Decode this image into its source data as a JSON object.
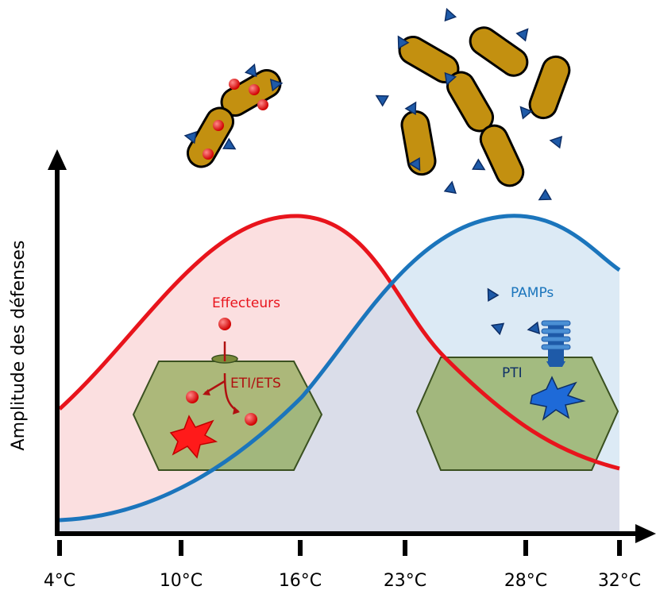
{
  "axis": {
    "y_label": "Amplitude des défenses",
    "x_labels": [
      "4°C",
      "10°C",
      "16°C",
      "23°C",
      "28°C",
      "32°C"
    ]
  },
  "labels": {
    "effectors": "Effecteurs",
    "eti": "ETI/ETS",
    "pamps": "PAMPs",
    "pti": "PTI"
  }
}
